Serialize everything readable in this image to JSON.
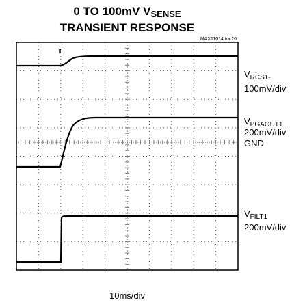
{
  "title": {
    "line1": "0 TO 100mV V",
    "line1_sub": "SENSE",
    "line2": "TRANSIENT RESPONSE"
  },
  "figure_id": "MAX11014 toc26",
  "channels": [
    {
      "symbol": "V",
      "subscript": "RCS1-",
      "scale": "100mV/div"
    },
    {
      "symbol": "V",
      "subscript": "PGAOUT1",
      "scale": "200mV/div"
    },
    {
      "symbol": "V",
      "subscript": "FILT1",
      "scale": "200mV/div"
    }
  ],
  "ground_label": "GND",
  "timebase": "10ms/div"
}
